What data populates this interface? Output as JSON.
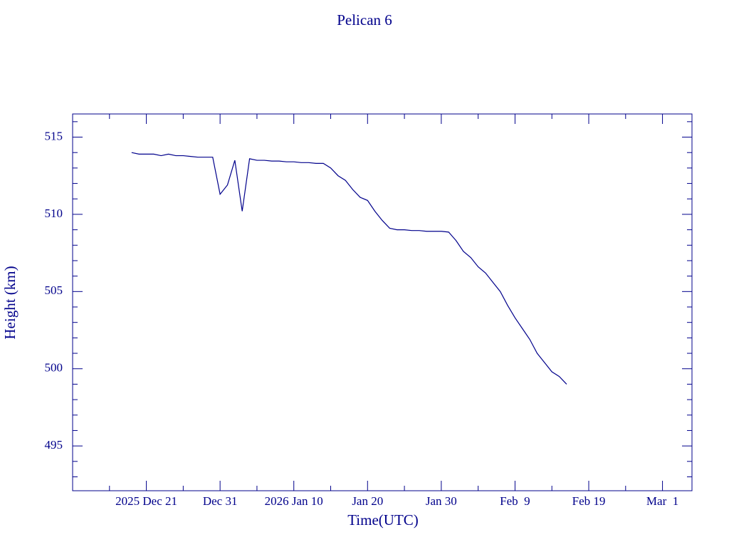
{
  "chart_data": {
    "type": "line",
    "title": "Pelican 6",
    "xlabel": "Time(UTC)",
    "ylabel": "Height (km)",
    "color": "#00008b",
    "x": [
      "2025-12-19",
      "2025-12-20",
      "2025-12-21",
      "2025-12-22",
      "2025-12-23",
      "2025-12-24",
      "2025-12-25",
      "2025-12-26",
      "2025-12-27",
      "2025-12-28",
      "2025-12-29",
      "2025-12-30",
      "2025-12-31",
      "2026-01-01",
      "2026-01-02",
      "2026-01-03",
      "2026-01-04",
      "2026-01-05",
      "2026-01-06",
      "2026-01-07",
      "2026-01-08",
      "2026-01-09",
      "2026-01-10",
      "2026-01-11",
      "2026-01-12",
      "2026-01-13",
      "2026-01-14",
      "2026-01-15",
      "2026-01-16",
      "2026-01-17",
      "2026-01-18",
      "2026-01-19",
      "2026-01-20",
      "2026-01-21",
      "2026-01-22",
      "2026-01-23",
      "2026-01-24",
      "2026-01-25",
      "2026-01-26",
      "2026-01-27",
      "2026-01-28",
      "2026-01-29",
      "2026-01-30",
      "2026-01-31",
      "2026-02-01",
      "2026-02-02",
      "2026-02-03",
      "2026-02-04",
      "2026-02-05",
      "2026-02-06",
      "2026-02-07",
      "2026-02-08",
      "2026-02-09",
      "2026-02-10",
      "2026-02-11",
      "2026-02-12",
      "2026-02-13",
      "2026-02-14",
      "2026-02-15",
      "2026-02-16"
    ],
    "values": [
      514.0,
      513.9,
      513.9,
      513.9,
      513.8,
      513.9,
      513.8,
      513.8,
      513.75,
      513.7,
      513.7,
      513.7,
      511.3,
      511.9,
      513.5,
      510.2,
      513.6,
      513.5,
      513.5,
      513.45,
      513.45,
      513.4,
      513.4,
      513.35,
      513.35,
      513.3,
      513.3,
      513.0,
      512.5,
      512.2,
      511.6,
      511.1,
      510.9,
      510.2,
      509.6,
      509.1,
      509.0,
      509.0,
      508.95,
      508.95,
      508.9,
      508.9,
      508.9,
      508.85,
      508.3,
      507.6,
      507.2,
      506.6,
      506.2,
      505.6,
      505.0,
      504.1,
      503.3,
      502.6,
      501.9,
      501.0,
      500.4,
      499.8,
      499.5,
      499.0
    ],
    "xlim": [
      "2025-12-11",
      "2026-03-05"
    ],
    "xticks": [
      {
        "value": "2025-12-21",
        "label": "2025 Dec 21"
      },
      {
        "value": "2025-12-31",
        "label": "Dec 31"
      },
      {
        "value": "2026-01-10",
        "label": "2026 Jan 10"
      },
      {
        "value": "2026-01-20",
        "label": "Jan 20"
      },
      {
        "value": "2026-01-30",
        "label": "Jan 30"
      },
      {
        "value": "2026-02-09",
        "label": "Feb  9"
      },
      {
        "value": "2026-02-19",
        "label": "Feb 19"
      },
      {
        "value": "2026-03-01",
        "label": "Mar  1"
      }
    ],
    "xminorticks": [
      "2025-12-16",
      "2025-12-26",
      "2026-01-05",
      "2026-01-15",
      "2026-01-25",
      "2026-02-04",
      "2026-02-14",
      "2026-02-24"
    ],
    "ylim": [
      492.1,
      516.5
    ],
    "yticks": [
      495,
      500,
      505,
      510,
      515
    ],
    "yminorticks": [
      493,
      494,
      496,
      497,
      498,
      499,
      501,
      502,
      503,
      504,
      506,
      507,
      508,
      509,
      511,
      512,
      513,
      514,
      516
    ]
  }
}
